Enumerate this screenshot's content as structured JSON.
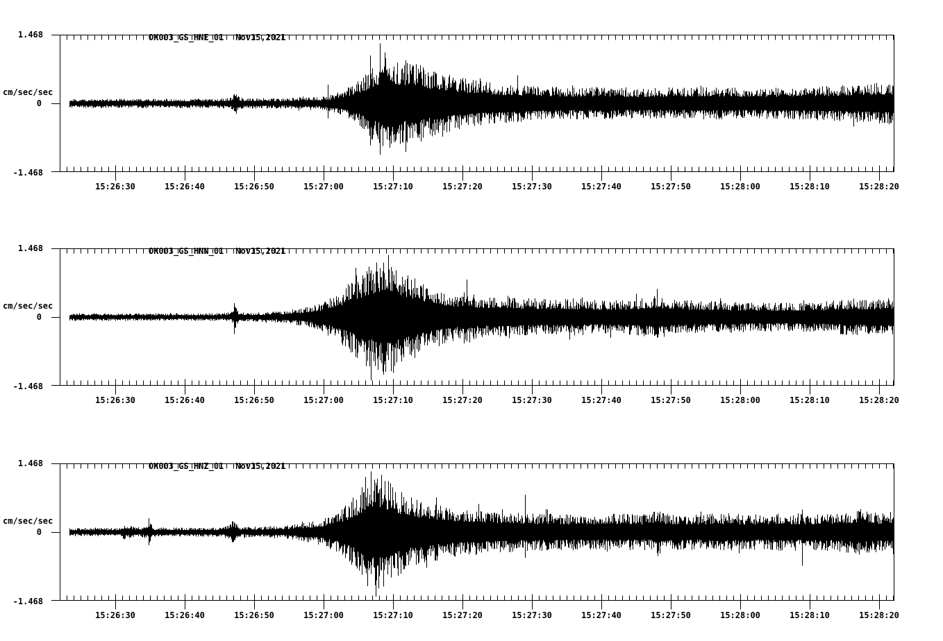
{
  "y_axis_labels": {
    "top": "1.468",
    "zero": "0",
    "bottom": "-1.468",
    "units": "cm/sec/sec"
  },
  "chart_data": {
    "type": "line",
    "subtype": "seismogram-3-component",
    "ylabel": "cm/sec/sec",
    "ylim": [
      -1.468,
      1.468
    ],
    "grid": false,
    "legend": false,
    "x_tick_labels": [
      "15:26:30",
      "15:26:40",
      "15:26:50",
      "15:27:00",
      "15:27:10",
      "15:27:20",
      "15:27:30",
      "15:27:40",
      "15:27:50",
      "15:28:00",
      "15:28:10",
      "15:28:20"
    ],
    "x_major_tick_interval_s": 10,
    "x_minor_tick_interval_s": 1,
    "x_axis_range_s_rel_first_label": [
      -8,
      112.1
    ],
    "envelope_note": "envelope points are [seconds relative to 15:26:30 tick, peak amplitude in cm/sec/sec]; spikes are [t, up_amp, down_amp]",
    "panels": [
      {
        "station": "OK003_GS_HNE_01",
        "date_label": "Nov15,2021",
        "seed": 101,
        "envelope": [
          [
            -6.6,
            0.1
          ],
          [
            15.0,
            0.1
          ],
          [
            16.6,
            0.13
          ],
          [
            17.3,
            0.24
          ],
          [
            18.0,
            0.12
          ],
          [
            25.0,
            0.11
          ],
          [
            27.0,
            0.15
          ],
          [
            29.0,
            0.13
          ],
          [
            31.0,
            0.18
          ],
          [
            33.0,
            0.3
          ],
          [
            34.5,
            0.45
          ],
          [
            36.0,
            0.62
          ],
          [
            37.5,
            0.88
          ],
          [
            38.5,
            1.05
          ],
          [
            39.5,
            1.18
          ],
          [
            40.5,
            0.92
          ],
          [
            41.5,
            0.85
          ],
          [
            43.0,
            0.95
          ],
          [
            44.5,
            0.78
          ],
          [
            46.0,
            0.7
          ],
          [
            48.0,
            0.62
          ],
          [
            50.0,
            0.55
          ],
          [
            52.5,
            0.48
          ],
          [
            55.0,
            0.44
          ],
          [
            58.0,
            0.4
          ],
          [
            62.0,
            0.36
          ],
          [
            66.0,
            0.34
          ],
          [
            70.0,
            0.36
          ],
          [
            74.0,
            0.32
          ],
          [
            80.0,
            0.34
          ],
          [
            86.0,
            0.35
          ],
          [
            92.0,
            0.33
          ],
          [
            98.0,
            0.35
          ],
          [
            104.0,
            0.38
          ],
          [
            108.0,
            0.42
          ],
          [
            112.0,
            0.46
          ]
        ],
        "spikes": [
          [
            38.1,
            1.28,
            -1.1
          ],
          [
            36.7,
            1.02,
            -0.9
          ],
          [
            41.8,
            0.92,
            -1.04
          ],
          [
            30.6,
            0.4,
            -0.32
          ],
          [
            57.9,
            0.6,
            -0.4
          ]
        ]
      },
      {
        "station": "OK003_GS_HNN_01",
        "date_label": "Nov15,2021",
        "seed": 202,
        "envelope": [
          [
            -6.6,
            0.08
          ],
          [
            15.5,
            0.08
          ],
          [
            16.8,
            0.12
          ],
          [
            17.1,
            0.3
          ],
          [
            17.8,
            0.1
          ],
          [
            21.0,
            0.1
          ],
          [
            23.0,
            0.12
          ],
          [
            25.0,
            0.15
          ],
          [
            27.0,
            0.2
          ],
          [
            29.0,
            0.28
          ],
          [
            31.0,
            0.42
          ],
          [
            32.5,
            0.58
          ],
          [
            34.0,
            0.8
          ],
          [
            35.5,
            1.0
          ],
          [
            37.0,
            1.15
          ],
          [
            38.5,
            1.25
          ],
          [
            39.5,
            1.3
          ],
          [
            40.5,
            1.15
          ],
          [
            42.0,
            1.02
          ],
          [
            43.5,
            0.88
          ],
          [
            45.0,
            0.72
          ],
          [
            47.0,
            0.6
          ],
          [
            49.0,
            0.5
          ],
          [
            50.6,
            0.6
          ],
          [
            52.0,
            0.46
          ],
          [
            54.0,
            0.42
          ],
          [
            56.5,
            0.46
          ],
          [
            59.0,
            0.42
          ],
          [
            62.0,
            0.38
          ],
          [
            66.0,
            0.4
          ],
          [
            70.0,
            0.36
          ],
          [
            74.0,
            0.38
          ],
          [
            78.0,
            0.46
          ],
          [
            82.0,
            0.36
          ],
          [
            87.0,
            0.34
          ],
          [
            92.0,
            0.32
          ],
          [
            97.0,
            0.31
          ],
          [
            102.0,
            0.34
          ],
          [
            106.0,
            0.4
          ],
          [
            109.0,
            0.37
          ],
          [
            112.0,
            0.43
          ]
        ],
        "spikes": [
          [
            39.3,
            1.33,
            -0.92
          ],
          [
            36.8,
            1.0,
            -1.36
          ],
          [
            34.6,
            1.05,
            -0.85
          ],
          [
            50.6,
            0.8,
            -0.52
          ],
          [
            78.0,
            0.6,
            -0.44
          ],
          [
            17.1,
            0.3,
            -0.36
          ]
        ]
      },
      {
        "station": "OK003_GS_HNZ_01",
        "date_label": "Nov15,2021",
        "seed": 303,
        "envelope": [
          [
            -6.6,
            0.09
          ],
          [
            0.5,
            0.09
          ],
          [
            1.2,
            0.16
          ],
          [
            2.2,
            0.14
          ],
          [
            3.0,
            0.1
          ],
          [
            4.6,
            0.12
          ],
          [
            4.8,
            0.3
          ],
          [
            5.4,
            0.1
          ],
          [
            15.5,
            0.1
          ],
          [
            17.0,
            0.25
          ],
          [
            17.8,
            0.11
          ],
          [
            21.0,
            0.12
          ],
          [
            24.0,
            0.14
          ],
          [
            26.0,
            0.17
          ],
          [
            28.0,
            0.22
          ],
          [
            30.0,
            0.3
          ],
          [
            32.0,
            0.45
          ],
          [
            33.5,
            0.62
          ],
          [
            35.0,
            0.88
          ],
          [
            36.2,
            1.15
          ],
          [
            37.0,
            1.3
          ],
          [
            38.2,
            1.25
          ],
          [
            39.5,
            1.1
          ],
          [
            41.0,
            0.92
          ],
          [
            42.5,
            0.8
          ],
          [
            44.0,
            0.7
          ],
          [
            46.0,
            0.62
          ],
          [
            48.0,
            0.56
          ],
          [
            50.0,
            0.52
          ],
          [
            52.5,
            0.48
          ],
          [
            55.0,
            0.45
          ],
          [
            58.0,
            0.42
          ],
          [
            62.0,
            0.4
          ],
          [
            67.0,
            0.38
          ],
          [
            72.0,
            0.4
          ],
          [
            77.0,
            0.38
          ],
          [
            78.1,
            0.52
          ],
          [
            79.0,
            0.4
          ],
          [
            84.0,
            0.38
          ],
          [
            88.0,
            0.41
          ],
          [
            92.0,
            0.38
          ],
          [
            96.0,
            0.42
          ],
          [
            100.0,
            0.39
          ],
          [
            104.0,
            0.42
          ],
          [
            107.5,
            0.5
          ],
          [
            110.0,
            0.42
          ],
          [
            112.0,
            0.45
          ]
        ],
        "spikes": [
          [
            37.5,
            1.05,
            -1.38
          ],
          [
            36.8,
            1.3,
            -0.9
          ],
          [
            38.3,
            1.22,
            -0.82
          ],
          [
            36.0,
            1.18,
            -0.78
          ],
          [
            4.8,
            0.3,
            -0.28
          ],
          [
            46.2,
            0.74,
            -0.5
          ],
          [
            59.0,
            0.8,
            -0.55
          ],
          [
            98.9,
            0.48,
            -0.72
          ]
        ]
      }
    ]
  }
}
